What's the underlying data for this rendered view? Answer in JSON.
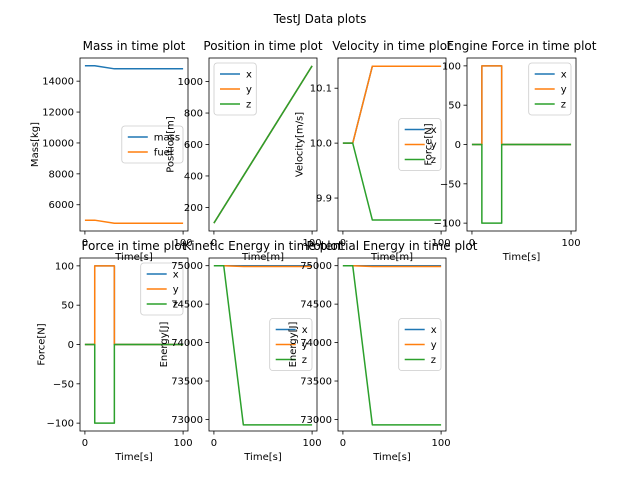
{
  "suptitle": "TestJ Data plots",
  "colors": {
    "c0": "#1f77b4",
    "c1": "#ff7f0e",
    "c2": "#2ca02c"
  },
  "chart_data": [
    {
      "type": "line",
      "title": "Mass in time plot",
      "xlabel": "Time[s]",
      "ylabel": "Mass[kg]",
      "xlim": [
        -5,
        105
      ],
      "ylim": [
        4300,
        15500
      ],
      "xticks": [
        0,
        100
      ],
      "yticks": [
        6000,
        8000,
        10000,
        12000,
        14000
      ],
      "ytick_labels": [
        "6000",
        "8000",
        "10000",
        "12000",
        "14000"
      ],
      "legend": "center-right",
      "series": [
        {
          "name": "mass",
          "color": "c0",
          "x": [
            0,
            10,
            30,
            100
          ],
          "y": [
            15000,
            15000,
            14800,
            14800
          ]
        },
        {
          "name": "fuel",
          "color": "c1",
          "x": [
            0,
            10,
            30,
            100
          ],
          "y": [
            5000,
            5000,
            4800,
            4800
          ]
        }
      ]
    },
    {
      "type": "line",
      "title": "Position in time plot",
      "xlabel": "Time[m]",
      "ylabel": "Position[m]",
      "xlim": [
        -5,
        105
      ],
      "ylim": [
        50,
        1150
      ],
      "xticks": [
        0,
        100
      ],
      "yticks": [
        200,
        400,
        600,
        800,
        1000
      ],
      "ytick_labels": [
        "200",
        "400",
        "600",
        "800",
        "1000"
      ],
      "legend": "top-left",
      "series": [
        {
          "name": "x",
          "color": "c0",
          "x": [
            0,
            100
          ],
          "y": [
            100,
            1100
          ]
        },
        {
          "name": "y",
          "color": "c1",
          "x": [
            0,
            100
          ],
          "y": [
            100,
            1100
          ]
        },
        {
          "name": "z",
          "color": "c2",
          "x": [
            0,
            100
          ],
          "y": [
            100,
            1100
          ]
        }
      ]
    },
    {
      "type": "line",
      "title": "Velocity in time plot",
      "xlabel": "Time[m]",
      "ylabel": "Velocity[m/s]",
      "xlim": [
        -5,
        105
      ],
      "ylim": [
        9.84,
        10.155
      ],
      "xticks": [
        0,
        100
      ],
      "yticks": [
        9.9,
        10.0,
        10.1
      ],
      "ytick_labels": [
        "9.9",
        "10.0",
        "10.1"
      ],
      "legend": "center-right",
      "series": [
        {
          "name": "x",
          "color": "c0",
          "x": [
            0,
            10,
            30,
            100
          ],
          "y": [
            10.0,
            10.0,
            10.14,
            10.14
          ]
        },
        {
          "name": "y",
          "color": "c1",
          "x": [
            0,
            10,
            30,
            100
          ],
          "y": [
            10.0,
            10.0,
            10.14,
            10.14
          ]
        },
        {
          "name": "z",
          "color": "c2",
          "x": [
            0,
            10,
            30,
            100
          ],
          "y": [
            10.0,
            10.0,
            9.86,
            9.86
          ]
        }
      ]
    },
    {
      "type": "line",
      "title": "Engine Force in time plot",
      "xlabel": "Time[s]",
      "ylabel": "Force[N]",
      "xlim": [
        -5,
        105
      ],
      "ylim": [
        -110,
        110
      ],
      "xticks": [
        0,
        100
      ],
      "yticks": [
        -100,
        -50,
        0,
        50,
        100
      ],
      "ytick_labels": [
        "−100",
        "−50",
        "0",
        "50",
        "100"
      ],
      "legend": "top-right",
      "series": [
        {
          "name": "x",
          "color": "c0",
          "x": [
            0,
            10,
            10,
            30,
            30,
            100
          ],
          "y": [
            0,
            0,
            100,
            100,
            0,
            0
          ]
        },
        {
          "name": "y",
          "color": "c1",
          "x": [
            0,
            10,
            10,
            30,
            30,
            100
          ],
          "y": [
            0,
            0,
            100,
            100,
            0,
            0
          ]
        },
        {
          "name": "z",
          "color": "c2",
          "x": [
            0,
            10,
            10,
            30,
            30,
            100
          ],
          "y": [
            0,
            0,
            -100,
            -100,
            0,
            0
          ]
        }
      ]
    },
    {
      "type": "line",
      "title": "Force in time plot",
      "xlabel": "Time[s]",
      "ylabel": "Force[N]",
      "xlim": [
        -5,
        105
      ],
      "ylim": [
        -110,
        110
      ],
      "xticks": [
        0,
        100
      ],
      "yticks": [
        -100,
        -50,
        0,
        50,
        100
      ],
      "ytick_labels": [
        "−100",
        "−50",
        "0",
        "50",
        "100"
      ],
      "legend": "top-right",
      "series": [
        {
          "name": "x",
          "color": "c0",
          "x": [
            0,
            10,
            10,
            30,
            30,
            100
          ],
          "y": [
            0,
            0,
            100,
            100,
            0,
            0
          ]
        },
        {
          "name": "y",
          "color": "c1",
          "x": [
            0,
            10,
            10,
            30,
            30,
            100
          ],
          "y": [
            0,
            0,
            100,
            100,
            0,
            0
          ]
        },
        {
          "name": "z",
          "color": "c2",
          "x": [
            0,
            10,
            10,
            30,
            30,
            100
          ],
          "y": [
            0,
            0,
            -100,
            -100,
            0,
            0
          ]
        }
      ]
    },
    {
      "type": "line",
      "title": "Kinetic Energy in time plot",
      "xlabel": "Time[s]",
      "ylabel": "Energy[J]",
      "xlim": [
        -5,
        105
      ],
      "ylim": [
        72850,
        75100
      ],
      "xticks": [
        0,
        100
      ],
      "yticks": [
        73000,
        73500,
        74000,
        74500,
        75000
      ],
      "ytick_labels": [
        "73000",
        "73500",
        "74000",
        "74500",
        "75000"
      ],
      "legend": "center-right",
      "series": [
        {
          "name": "x",
          "color": "c0",
          "x": [
            0,
            10,
            30,
            100
          ],
          "y": [
            75000,
            75000,
            75000,
            75000
          ]
        },
        {
          "name": "y",
          "color": "c1",
          "x": [
            0,
            10,
            30,
            100
          ],
          "y": [
            75000,
            75000,
            74990,
            74990
          ]
        },
        {
          "name": "z",
          "color": "c2",
          "x": [
            0,
            10,
            30,
            100
          ],
          "y": [
            75000,
            75000,
            72930,
            72930
          ]
        }
      ]
    },
    {
      "type": "line",
      "title": "Potential Energy in time plot",
      "xlabel": "Time[s]",
      "ylabel": "Energy[J]",
      "xlim": [
        -5,
        105
      ],
      "ylim": [
        72850,
        75100
      ],
      "xticks": [
        0,
        100
      ],
      "yticks": [
        73000,
        73500,
        74000,
        74500,
        75000
      ],
      "ytick_labels": [
        "73000",
        "73500",
        "74000",
        "74500",
        "75000"
      ],
      "legend": "center-right",
      "series": [
        {
          "name": "x",
          "color": "c0",
          "x": [
            0,
            10,
            30,
            100
          ],
          "y": [
            75000,
            75000,
            75000,
            75000
          ]
        },
        {
          "name": "y",
          "color": "c1",
          "x": [
            0,
            10,
            30,
            100
          ],
          "y": [
            75000,
            75000,
            74990,
            74990
          ]
        },
        {
          "name": "z",
          "color": "c2",
          "x": [
            0,
            10,
            30,
            100
          ],
          "y": [
            75000,
            75000,
            72930,
            72930
          ]
        }
      ]
    }
  ]
}
